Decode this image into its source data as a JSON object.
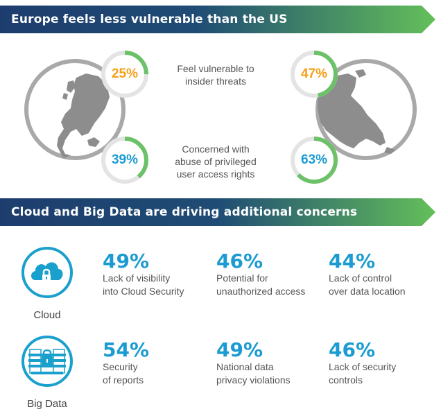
{
  "section1": {
    "title": "Europe feels less vulnerable than the US",
    "rows": [
      {
        "label_lines": [
          "Feel vulnerable to",
          "insider threats"
        ],
        "europe_percent": "25%",
        "europe_value": 25,
        "us_percent": "47%",
        "us_value": 47,
        "color": "#f6a01a"
      },
      {
        "label_lines": [
          "Concerned with",
          "abuse of privileged",
          "user access rights"
        ],
        "europe_percent": "39%",
        "europe_value": 39,
        "us_percent": "63%",
        "us_value": 63,
        "color": "#1b9bd1"
      }
    ]
  },
  "section2": {
    "title": "Cloud and Big Data are driving additional concerns",
    "groups": [
      {
        "label": "Cloud",
        "icon": "cloud-lock-icon",
        "stats": [
          {
            "percent": "49%",
            "lines": [
              "Lack of visibility",
              "into Cloud Security"
            ]
          },
          {
            "percent": "46%",
            "lines": [
              "Potential for",
              "unauthorized access"
            ]
          },
          {
            "percent": "44%",
            "lines": [
              "Lack of control",
              "over data location"
            ]
          }
        ]
      },
      {
        "label": "Big Data",
        "icon": "data-center-lock-icon",
        "stats": [
          {
            "percent": "54%",
            "lines": [
              "Security",
              "of reports"
            ]
          },
          {
            "percent": "49%",
            "lines": [
              "National data",
              "privacy violations"
            ]
          },
          {
            "percent": "46%",
            "lines": [
              "Lack of security",
              "controls"
            ]
          }
        ]
      }
    ]
  },
  "colors": {
    "banner_dark": "#1d3d6e",
    "banner_light": "#64bf5a",
    "ring_green": "#6cc169",
    "ring_track": "#e4e4e4",
    "icon_blue": "#1aa0cc",
    "stat_blue": "#1b9bd1",
    "globe_gray": "#a9a9a9"
  }
}
